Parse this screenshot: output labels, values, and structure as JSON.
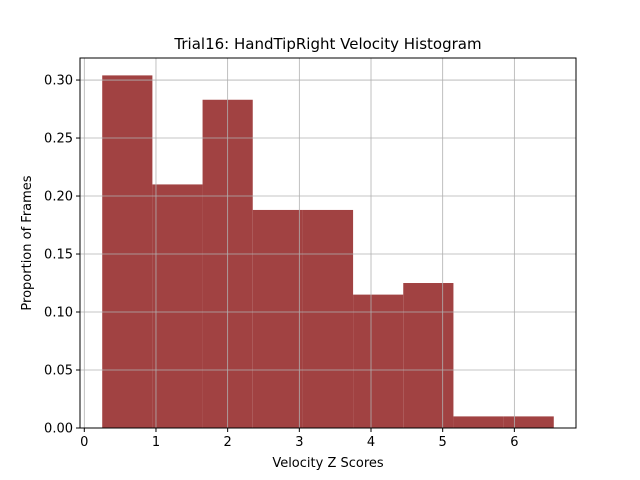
{
  "chart_data": {
    "type": "bar",
    "subtype": "histogram",
    "title": "Trial16: HandTipRight Velocity Histogram",
    "xlabel": "Velocity Z Scores",
    "ylabel": "Proportion of Frames",
    "xlim": [
      -0.06,
      6.86
    ],
    "ylim": [
      0.0,
      0.319
    ],
    "xticks": [
      0,
      1,
      2,
      3,
      4,
      5,
      6
    ],
    "xtick_labels": [
      "0",
      "1",
      "2",
      "3",
      "4",
      "5",
      "6"
    ],
    "yticks": [
      0.0,
      0.05,
      0.1,
      0.15,
      0.2,
      0.25,
      0.3
    ],
    "ytick_labels": [
      "0.00",
      "0.05",
      "0.10",
      "0.15",
      "0.20",
      "0.25",
      "0.30"
    ],
    "grid": true,
    "bar_color": "#a14242",
    "grid_color": "#b0b0b0",
    "bins": [
      {
        "x0": 0.25,
        "x1": 0.95,
        "value": 0.304
      },
      {
        "x0": 0.95,
        "x1": 1.65,
        "value": 0.21
      },
      {
        "x0": 1.65,
        "x1": 2.35,
        "value": 0.283
      },
      {
        "x0": 2.35,
        "x1": 3.05,
        "value": 0.188
      },
      {
        "x0": 3.05,
        "x1": 3.75,
        "value": 0.188
      },
      {
        "x0": 3.75,
        "x1": 4.45,
        "value": 0.115
      },
      {
        "x0": 4.45,
        "x1": 5.15,
        "value": 0.125
      },
      {
        "x0": 5.15,
        "x1": 5.85,
        "value": 0.01
      },
      {
        "x0": 5.85,
        "x1": 6.55,
        "value": 0.01
      }
    ]
  }
}
